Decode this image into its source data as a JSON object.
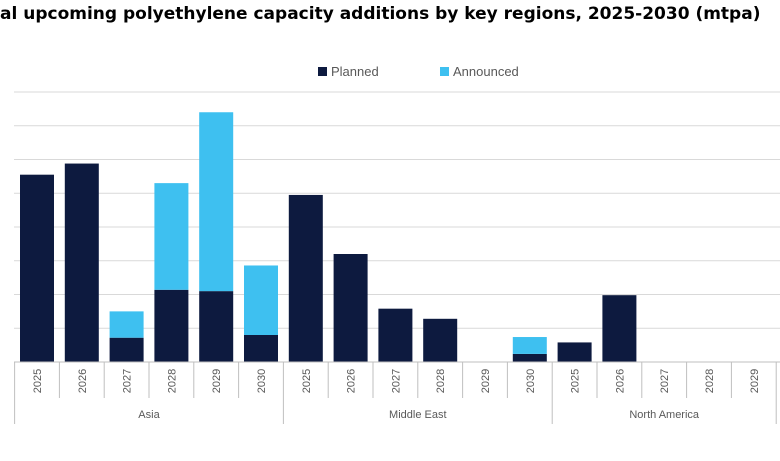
{
  "chart_data": {
    "type": "bar",
    "stacked": true,
    "title": "al upcoming polyethylene capacity additions by key regions, 2025-2030 (mtpa)",
    "xlabel": "",
    "ylabel": "",
    "ylim": [
      0,
      8
    ],
    "grid": true,
    "legend_position": "top",
    "colors": {
      "Planned": "#0d1a3f",
      "Announced": "#3ec0f0"
    },
    "groups": [
      {
        "name": "Asia",
        "categories": [
          "2025",
          "2026",
          "2027",
          "2028",
          "2029",
          "2030"
        ]
      },
      {
        "name": "Middle East",
        "categories": [
          "2025",
          "2026",
          "2027",
          "2028",
          "2029",
          "2030"
        ]
      },
      {
        "name": "North America",
        "categories": [
          "2025",
          "2026",
          "2027",
          "2028",
          "2029"
        ]
      }
    ],
    "series": [
      {
        "name": "Planned",
        "values": [
          5.55,
          5.88,
          0.72,
          2.14,
          2.1,
          0.8,
          4.95,
          3.2,
          1.58,
          1.28,
          0,
          0.24,
          0.58,
          1.98,
          0,
          0,
          0
        ]
      },
      {
        "name": "Announced",
        "values": [
          0,
          0,
          0.78,
          3.16,
          5.3,
          2.06,
          0,
          0,
          0,
          0,
          0,
          0.5,
          0,
          0,
          0,
          0,
          0
        ]
      }
    ]
  }
}
